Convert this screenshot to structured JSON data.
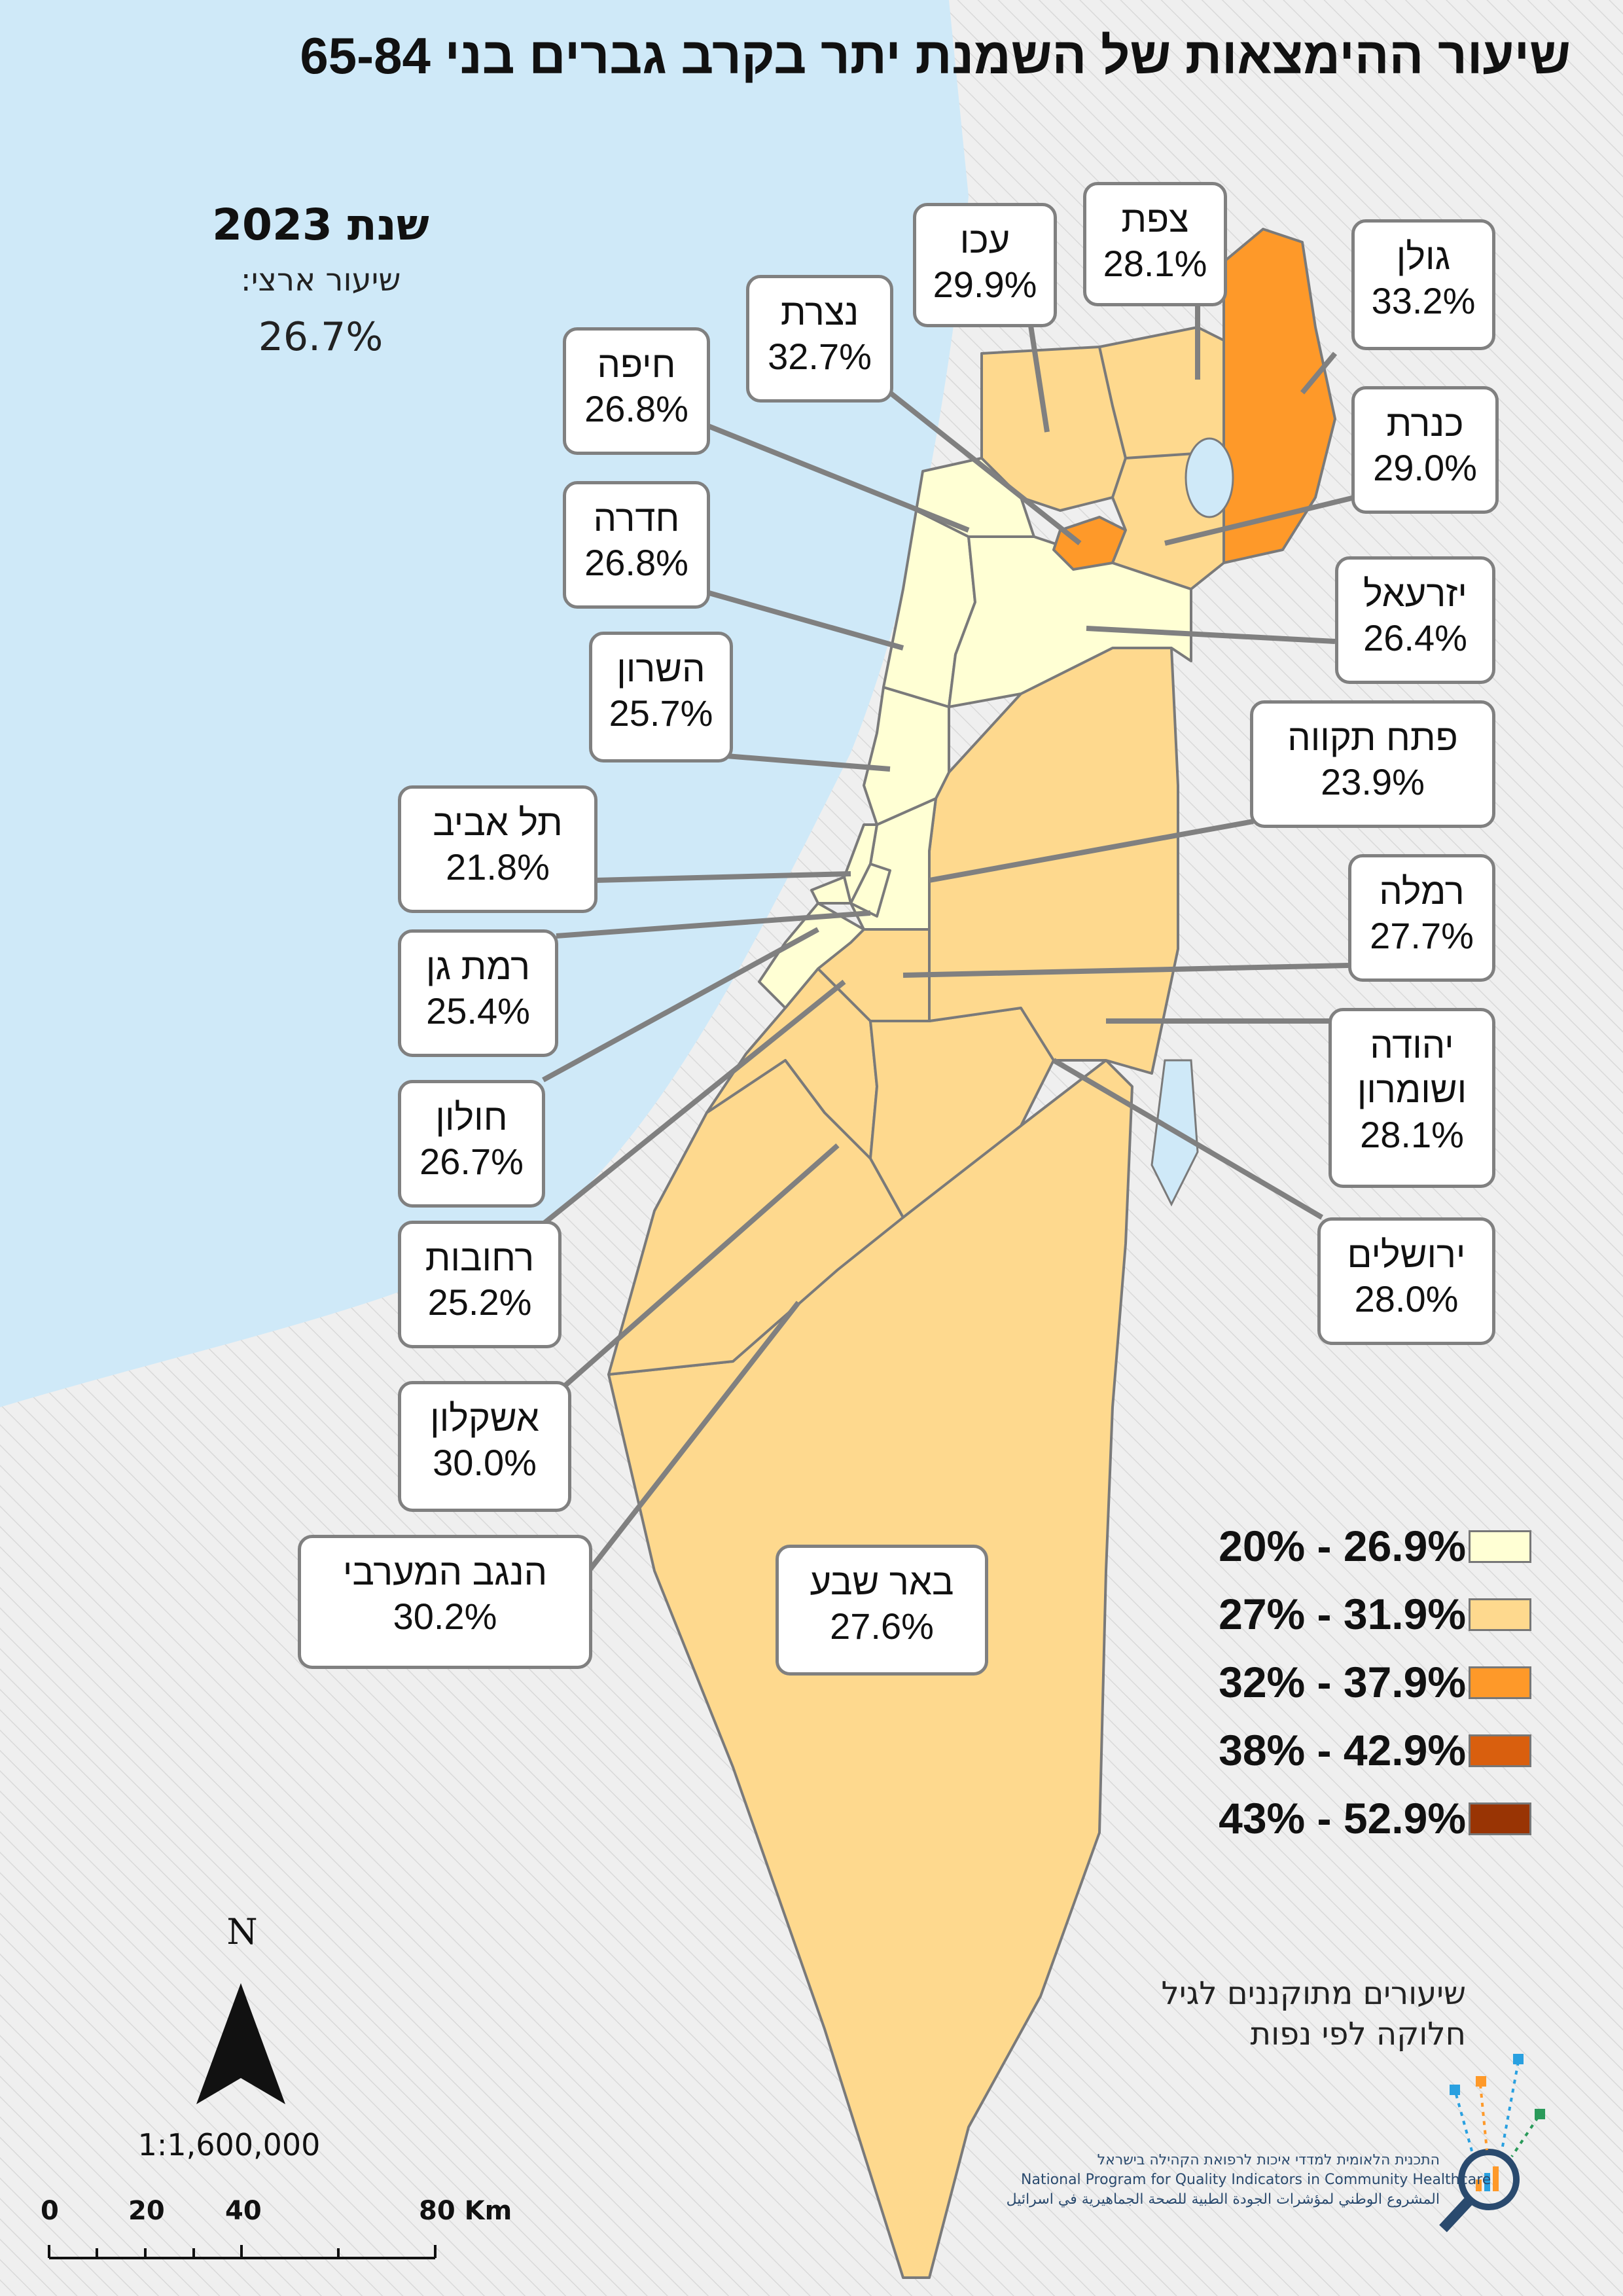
{
  "title": "שיעור ההימצאות של השמנת יתר בקרב גברים בני 65-84",
  "year_label": "שנת 2023",
  "national": {
    "label": "שיעור ארצי:",
    "value": "26.7%"
  },
  "regions": [
    {
      "name": "גולן",
      "value": "33.2%",
      "class": "32% - 37.9%"
    },
    {
      "name": "צפת",
      "value": "28.1%",
      "class": "27% - 31.9%"
    },
    {
      "name": "עכו",
      "value": "29.9%",
      "class": "27% - 31.9%"
    },
    {
      "name": "נצרת",
      "value": "32.7%",
      "class": "32% - 37.9%"
    },
    {
      "name": "חיפה",
      "value": "26.8%",
      "class": "20% - 26.9%"
    },
    {
      "name": "כנרת",
      "value": "29.0%",
      "class": "27% - 31.9%"
    },
    {
      "name": "חדרה",
      "value": "26.8%",
      "class": "20% - 26.9%"
    },
    {
      "name": "יזרעאל",
      "value": "26.4%",
      "class": "20% - 26.9%"
    },
    {
      "name": "השרון",
      "value": "25.7%",
      "class": "20% - 26.9%"
    },
    {
      "name": "פתח תקווה",
      "value": "23.9%",
      "class": "20% - 26.9%"
    },
    {
      "name": "תל אביב",
      "value": "21.8%",
      "class": "20% - 26.9%"
    },
    {
      "name": "רמלה",
      "value": "27.7%",
      "class": "27% - 31.9%"
    },
    {
      "name": "רמת גן",
      "value": "25.4%",
      "class": "20% - 26.9%"
    },
    {
      "name": "יהודה ושומרון",
      "value": "28.1%",
      "class": "27% - 31.9%"
    },
    {
      "name": "חולון",
      "value": "26.7%",
      "class": "20% - 26.9%"
    },
    {
      "name": "ירושלים",
      "value": "28.0%",
      "class": "27% - 31.9%"
    },
    {
      "name": "רחובות",
      "value": "25.2%",
      "class": "20% - 26.9%"
    },
    {
      "name": "אשקלון",
      "value": "30.0%",
      "class": "27% - 31.9%"
    },
    {
      "name": "הנגב המערבי",
      "value": "30.2%",
      "class": "27% - 31.9%"
    },
    {
      "name": "באר שבע",
      "value": "27.6%",
      "class": "27% - 31.9%"
    }
  ],
  "legend": [
    {
      "label": "20% - 26.9%",
      "color": "#ffffd4"
    },
    {
      "label": "27% - 31.9%",
      "color": "#fed98e"
    },
    {
      "label": "32% - 37.9%",
      "color": "#fe9929"
    },
    {
      "label": "38% - 42.9%",
      "color": "#d95f0e"
    },
    {
      "label": "43% - 52.9%",
      "color": "#993404"
    }
  ],
  "note": {
    "line1": "שיעורים מתוקננים לגיל",
    "line2": "חלוקה לפי נפות"
  },
  "north_letter": "N",
  "scale_ratio": "1:1,600,000",
  "scale_ticks": [
    "0",
    "20",
    "40",
    "80 Km"
  ],
  "logo": {
    "he": "התכנית הלאומית למדדי איכות לרפואת הקהילה בישראל",
    "en": "National Program for Quality Indicators in Community Healthcare",
    "ar": "المشروع الوطني لمؤشرات الجودة الطبية للصحة الجماهيرية في اسرائيل"
  },
  "colors": {
    "sea": "#cfe9f8",
    "outside": "#ececec",
    "border": "#7a7a7a",
    "leader": "#808080"
  }
}
